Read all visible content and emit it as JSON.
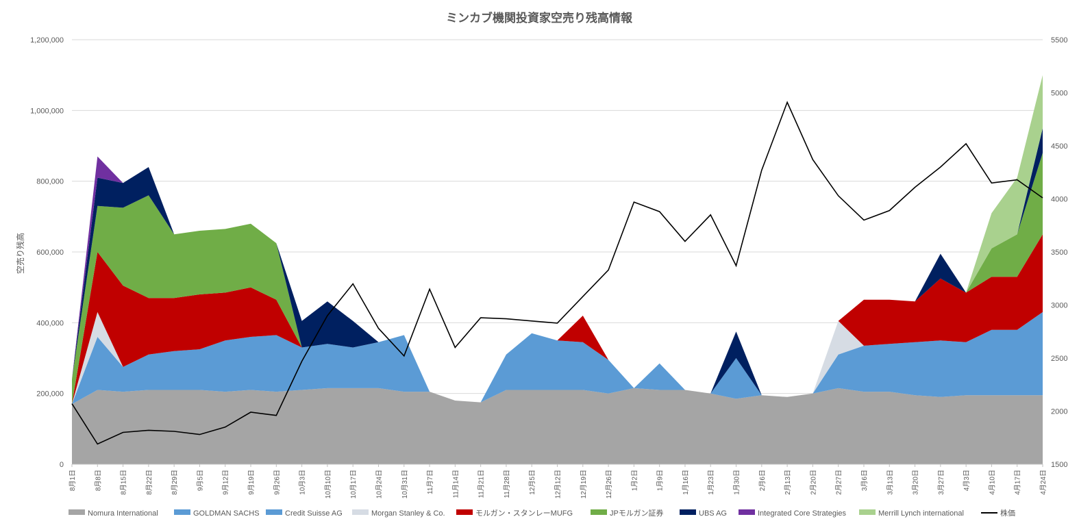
{
  "chart_data": {
    "type": "area",
    "title": "ミンカブ機関投資家空売り残高情報",
    "ylabel": "空売り残高",
    "y2label": "",
    "ylim": [
      0,
      1200000
    ],
    "y2lim": [
      1500,
      5500
    ],
    "yticks": [
      "0",
      "200,000",
      "400,000",
      "600,000",
      "800,000",
      "1,000,000",
      "1,200,000"
    ],
    "y2ticks": [
      "1500",
      "2000",
      "2500",
      "3000",
      "3500",
      "4000",
      "4500",
      "5000",
      "5500"
    ],
    "grid": true,
    "legend_position": "bottom",
    "stacked": true,
    "x_labels": [
      "8月1日",
      "8月8日",
      "8月15日",
      "8月22日",
      "8月29日",
      "9月5日",
      "9月12日",
      "9月19日",
      "9月26日",
      "10月3日",
      "10月10日",
      "10月17日",
      "10月24日",
      "10月31日",
      "11月7日",
      "11月14日",
      "11月21日",
      "11月28日",
      "12月5日",
      "12月12日",
      "12月19日",
      "12月26日",
      "1月2日",
      "1月9日",
      "1月16日",
      "1月23日",
      "1月30日",
      "2月6日",
      "2月13日",
      "2月20日",
      "2月27日",
      "3月6日",
      "3月13日",
      "3月20日",
      "3月27日",
      "4月3日",
      "4月10日",
      "4月17日",
      "4月24日"
    ],
    "series": [
      {
        "name": "Nomura International",
        "color": "#a5a5a5",
        "values": [
          170000,
          210000,
          205000,
          210000,
          210000,
          210000,
          205000,
          210000,
          205000,
          210000,
          215000,
          215000,
          215000,
          205000,
          205000,
          180000,
          175000,
          210000,
          210000,
          210000,
          210000,
          200000,
          215000,
          210000,
          210000,
          200000,
          185000,
          195000,
          190000,
          200000,
          215000,
          205000,
          205000,
          195000,
          190000,
          195000,
          195000,
          195000,
          195000
        ]
      },
      {
        "name": "GOLDMAN SACHS",
        "color": "#5b9bd5",
        "values": [
          0,
          0,
          0,
          0,
          0,
          0,
          0,
          0,
          0,
          0,
          0,
          0,
          0,
          0,
          0,
          0,
          0,
          0,
          0,
          0,
          0,
          0,
          0,
          0,
          0,
          0,
          0,
          0,
          0,
          0,
          0,
          0,
          0,
          0,
          0,
          0,
          0,
          0,
          0
        ]
      },
      {
        "name": "Credit Suisse AG",
        "color": "#5b9bd5",
        "values": [
          0,
          150000,
          70000,
          100000,
          110000,
          115000,
          145000,
          150000,
          160000,
          120000,
          125000,
          115000,
          130000,
          160000,
          0,
          0,
          0,
          100000,
          160000,
          140000,
          135000,
          95000,
          0,
          75000,
          0,
          0,
          115000,
          0,
          0,
          0,
          95000,
          130000,
          135000,
          150000,
          160000,
          150000,
          185000,
          185000,
          235000
        ]
      },
      {
        "name": "Morgan Stanley & Co.",
        "color": "#d6dce4",
        "values": [
          0,
          70000,
          0,
          0,
          0,
          0,
          0,
          0,
          0,
          0,
          0,
          0,
          0,
          0,
          0,
          0,
          0,
          0,
          0,
          0,
          0,
          0,
          0,
          0,
          0,
          0,
          0,
          0,
          0,
          0,
          95000,
          0,
          0,
          0,
          0,
          0,
          0,
          0,
          0
        ]
      },
      {
        "name": "モルガン・スタンレーMUFG",
        "color": "#c00000",
        "values": [
          0,
          170000,
          230000,
          160000,
          150000,
          155000,
          135000,
          140000,
          100000,
          0,
          0,
          0,
          0,
          0,
          0,
          0,
          0,
          0,
          0,
          0,
          75000,
          0,
          0,
          0,
          0,
          0,
          0,
          0,
          0,
          0,
          0,
          130000,
          125000,
          115000,
          175000,
          140000,
          150000,
          150000,
          220000
        ]
      },
      {
        "name": "JPモルガン証券",
        "color": "#70ad47",
        "values": [
          70000,
          130000,
          220000,
          290000,
          180000,
          180000,
          180000,
          180000,
          160000,
          0,
          0,
          0,
          0,
          0,
          0,
          0,
          0,
          0,
          0,
          0,
          0,
          0,
          0,
          0,
          0,
          0,
          0,
          0,
          0,
          0,
          0,
          0,
          0,
          0,
          0,
          0,
          80000,
          120000,
          230000
        ]
      },
      {
        "name": "UBS AG",
        "color": "#002060",
        "values": [
          0,
          80000,
          70000,
          80000,
          0,
          0,
          0,
          0,
          0,
          75000,
          120000,
          75000,
          0,
          0,
          0,
          0,
          0,
          0,
          0,
          0,
          0,
          0,
          0,
          0,
          0,
          0,
          75000,
          0,
          0,
          0,
          0,
          0,
          0,
          0,
          70000,
          0,
          0,
          0,
          70000
        ]
      },
      {
        "name": "Integrated Core Strategies",
        "color": "#7030a0",
        "values": [
          0,
          60000,
          0,
          0,
          0,
          0,
          0,
          0,
          0,
          0,
          0,
          0,
          0,
          0,
          0,
          0,
          0,
          0,
          0,
          0,
          0,
          0,
          0,
          0,
          0,
          0,
          0,
          0,
          0,
          0,
          0,
          0,
          0,
          0,
          0,
          0,
          0,
          0,
          0
        ]
      },
      {
        "name": "Merrill Lynch international",
        "color": "#a9d18e",
        "values": [
          0,
          0,
          0,
          0,
          0,
          0,
          0,
          0,
          0,
          0,
          0,
          0,
          0,
          0,
          0,
          0,
          0,
          0,
          0,
          0,
          0,
          0,
          0,
          0,
          0,
          0,
          0,
          0,
          0,
          0,
          0,
          0,
          0,
          0,
          0,
          0,
          100000,
          160000,
          150000
        ]
      },
      {
        "name": "株価",
        "color": "#000000",
        "type": "line",
        "axis": "right",
        "values": [
          2070,
          1690,
          1800,
          1820,
          1810,
          1780,
          1850,
          1990,
          1960,
          2470,
          2900,
          3200,
          2780,
          2520,
          3150,
          2600,
          2880,
          2870,
          2850,
          2830,
          3080,
          3330,
          3970,
          3880,
          3600,
          3850,
          3370,
          4270,
          4910,
          4370,
          4030,
          3800,
          3890,
          4110,
          4300,
          4520,
          4150,
          4180,
          4010
        ]
      }
    ]
  }
}
